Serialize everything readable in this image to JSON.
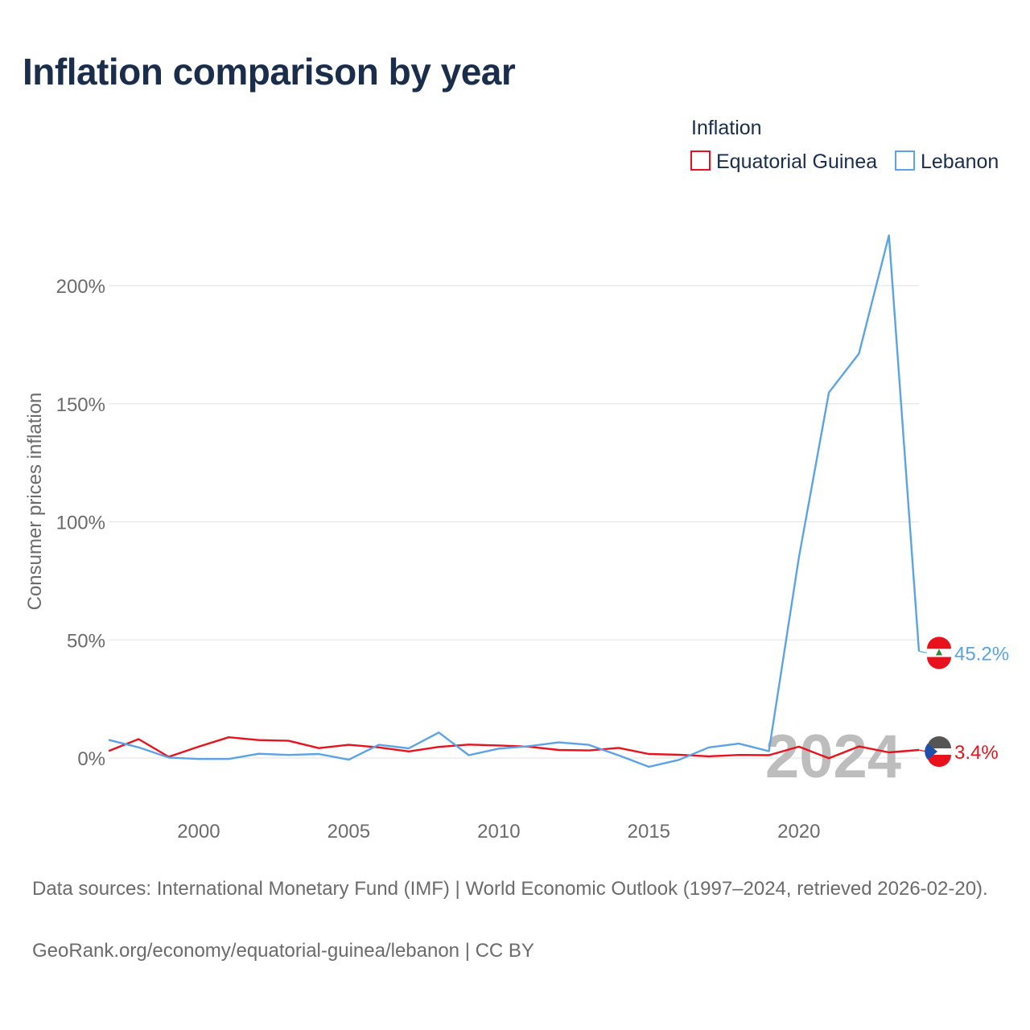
{
  "chart_data": {
    "type": "line",
    "title": "Inflation comparison by year",
    "ylabel": "Consumer prices inflation",
    "xlabel": "",
    "legend_title": "Inflation",
    "legend_position": "top-right",
    "xlim": [
      1997,
      2024
    ],
    "ylim": [
      -20,
      225
    ],
    "y_ticks": [
      0,
      50,
      100,
      150,
      200
    ],
    "y_tick_labels": [
      "0%",
      "50%",
      "100%",
      "150%",
      "200%"
    ],
    "x_ticks": [
      2000,
      2005,
      2010,
      2015,
      2020
    ],
    "x_tick_labels": [
      "2000",
      "2005",
      "2010",
      "2015",
      "2020"
    ],
    "year_watermark": "2024",
    "x": [
      1997,
      1998,
      1999,
      2000,
      2001,
      2002,
      2003,
      2004,
      2005,
      2006,
      2007,
      2008,
      2009,
      2010,
      2011,
      2012,
      2013,
      2014,
      2015,
      2016,
      2017,
      2018,
      2019,
      2020,
      2021,
      2022,
      2023,
      2024
    ],
    "series": [
      {
        "name": "Equatorial Guinea",
        "color": "#e8111c",
        "end_label": "3.4%",
        "values": [
          3.0,
          8.0,
          0.5,
          4.8,
          8.8,
          7.6,
          7.3,
          4.2,
          5.6,
          4.5,
          2.8,
          4.7,
          5.7,
          5.3,
          4.8,
          3.4,
          3.2,
          4.3,
          1.7,
          1.4,
          0.7,
          1.3,
          1.2,
          4.8,
          -0.1,
          4.9,
          2.4,
          3.4
        ]
      },
      {
        "name": "Lebanon",
        "color": "#5ba3e6",
        "end_label": "45.2%",
        "values": [
          7.7,
          4.5,
          0.2,
          -0.4,
          -0.4,
          1.8,
          1.3,
          1.7,
          -0.7,
          5.6,
          4.1,
          10.8,
          1.2,
          4.0,
          5.0,
          6.6,
          5.6,
          1.1,
          -3.7,
          -0.8,
          4.5,
          6.1,
          2.9,
          84.9,
          154.8,
          171.2,
          221.3,
          45.2
        ]
      }
    ]
  },
  "footer": {
    "source": "Data sources: International Monetary Fund (IMF) | World Economic Outlook (1997–2024, retrieved 2026-02-20).",
    "attribution": "GeoRank.org/economy/equatorial-guinea/lebanon | CC BY"
  }
}
